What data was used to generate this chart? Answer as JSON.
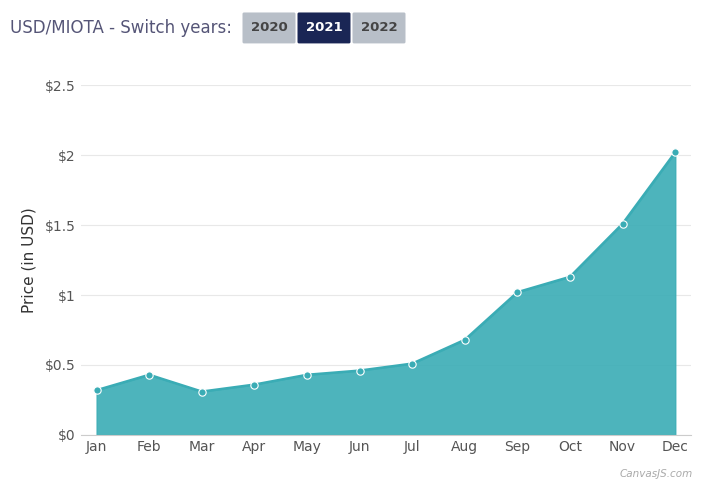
{
  "months": [
    "Jan",
    "Feb",
    "Mar",
    "Apr",
    "May",
    "Jun",
    "Jul",
    "Aug",
    "Sep",
    "Oct",
    "Nov",
    "Dec"
  ],
  "values": [
    0.32,
    0.43,
    0.31,
    0.36,
    0.43,
    0.46,
    0.51,
    0.68,
    1.02,
    1.13,
    1.51,
    2.02
  ],
  "line_color": "#3aacb5",
  "fill_color": "#3aacb5",
  "fill_alpha": 0.9,
  "marker_color": "#3aacb5",
  "marker_size": 6,
  "ylabel": "Price (in USD)",
  "ylim": [
    0,
    2.5
  ],
  "yticks": [
    0,
    0.5,
    1.0,
    1.5,
    2.0,
    2.5
  ],
  "ytick_labels": [
    "$0",
    "$0.5",
    "$1",
    "$1.5",
    "$2",
    "$2.5"
  ],
  "background_color": "#ffffff",
  "title_text": "USD/MIOTA - Switch years:",
  "title_color": "#555577",
  "button_inactive_color": "#b8bfc8",
  "button_active_color": "#1a2655",
  "button_text_inactive": "#444444",
  "button_text_active": "#ffffff",
  "watermark": "CanvasJS.com",
  "watermark_color": "#aaaaaa",
  "axis_label_color": "#333333",
  "tick_label_color": "#555555",
  "grid_color": "#e8e8e8",
  "spine_color": "#cccccc"
}
